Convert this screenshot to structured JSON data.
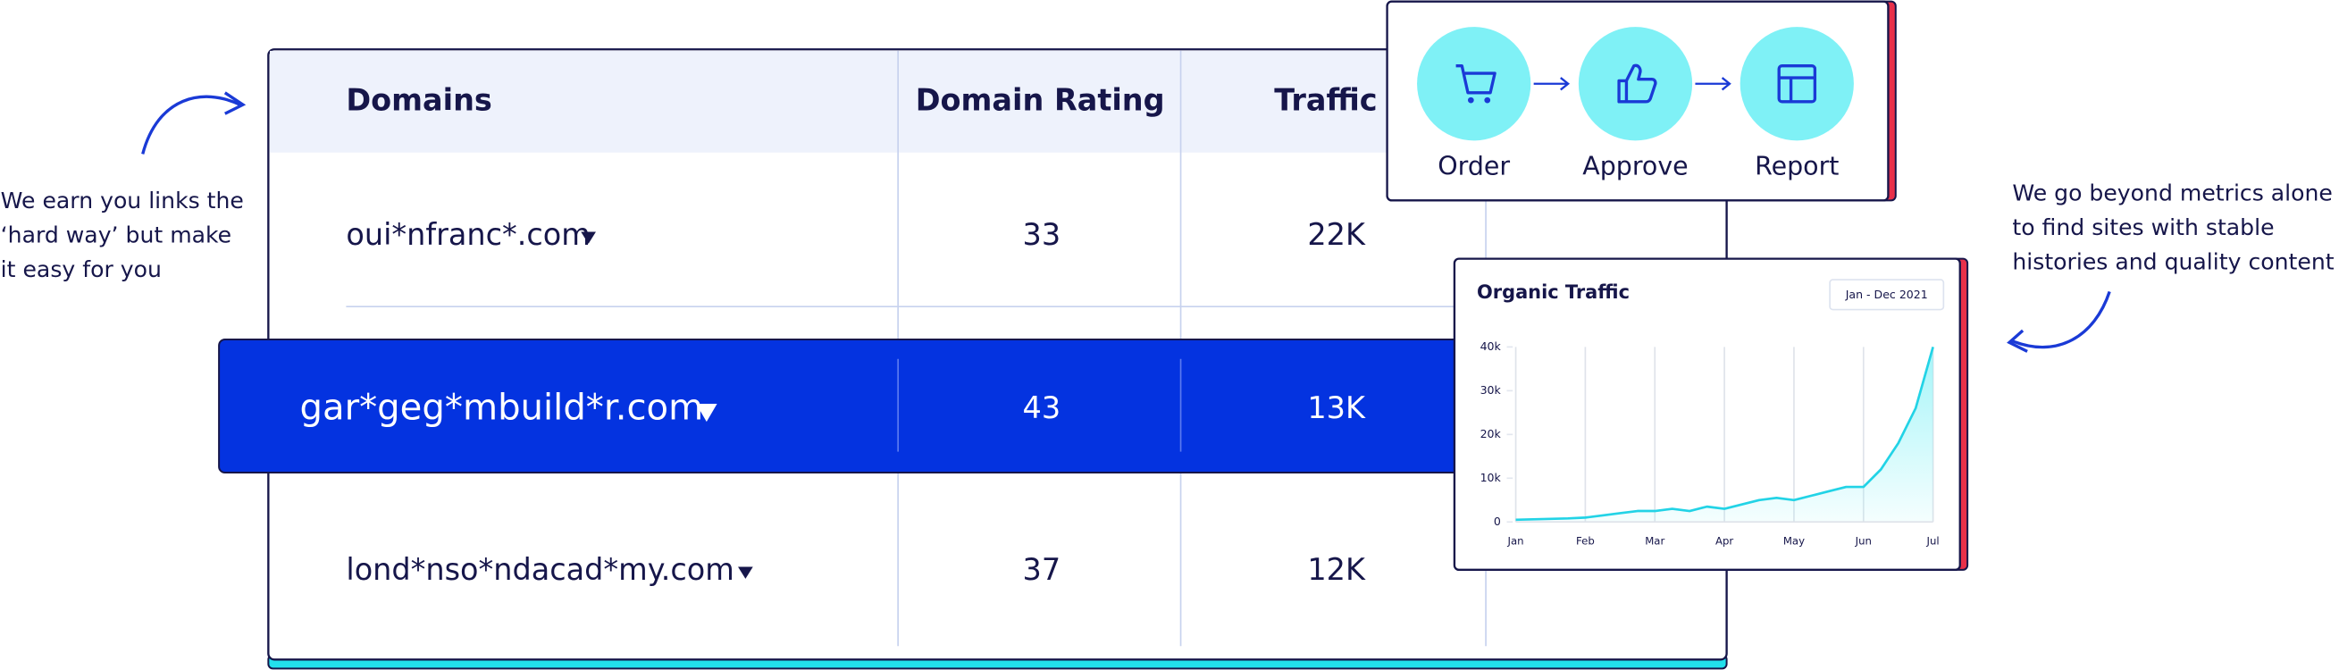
{
  "left_note": {
    "lines": [
      "We earn you links the",
      "‘hard way’ but make",
      "it easy for you"
    ]
  },
  "right_note": {
    "lines": [
      "We go beyond metrics alone",
      "to find sites with stable",
      "histories and quality content"
    ]
  },
  "table": {
    "columns": [
      "Domains",
      "Domain Rating",
      "Traffic"
    ],
    "rows": [
      [
        "oui*nfranc*.com",
        33,
        "22K"
      ],
      [
        "gar*geg*mbuild*r.com",
        43,
        "13K"
      ],
      [
        "lond*nso*ndacad*my.com",
        37,
        "12K"
      ]
    ]
  },
  "workflow": {
    "steps": [
      "Order",
      "Approve",
      "Report"
    ]
  },
  "chart_data": {
    "type": "line",
    "title": "Organic Traffic",
    "date_range": "Jan - Dec 2021",
    "categories": [
      "Jan",
      null,
      null,
      null,
      "Feb",
      null,
      null,
      null,
      "Mar",
      null,
      null,
      null,
      "Apr",
      null,
      null,
      null,
      "May",
      null,
      null,
      null,
      "Jun",
      null,
      null,
      null,
      "Jul"
    ],
    "values": [
      500,
      600,
      700,
      800,
      1000,
      1500,
      2000,
      2500,
      2500,
      3000,
      2500,
      3500,
      3000,
      4000,
      5000,
      5500,
      5000,
      6000,
      7000,
      8000,
      8000,
      12000,
      18000,
      26000,
      40000
    ],
    "color": "#22d3e6",
    "ylim": [
      0,
      40000
    ],
    "yticks": [
      0,
      {
        "value": 10000,
        "label": "10k"
      },
      {
        "value": 20000,
        "label": "20k"
      },
      {
        "value": 30000,
        "label": "30k"
      },
      {
        "value": 40000,
        "label": "40k"
      }
    ],
    "grid": true
  }
}
